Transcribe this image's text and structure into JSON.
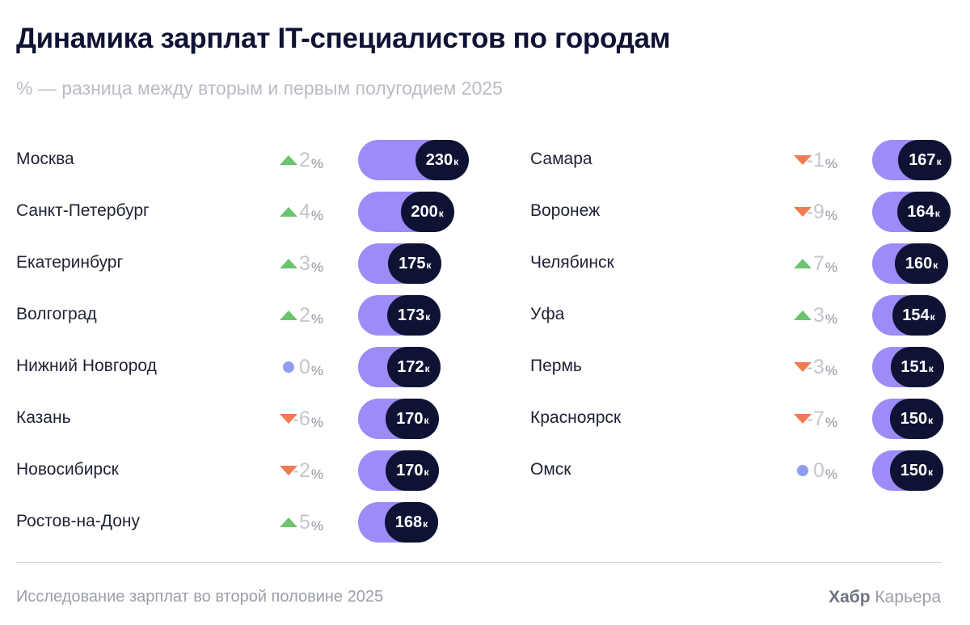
{
  "title": "Динамика зарплат IT-специалистов по городам",
  "subtitle": "% — разница между вторым и первым полугодием 2025",
  "footer": {
    "source": "Исследование зарплат во второй половине 2025",
    "brand_bold": "Хабр",
    "brand_rest": "Карьера"
  },
  "colors": {
    "up": "#6cc46e",
    "down": "#f07a52",
    "flat": "#8f9ef2",
    "bar": "#9d8bf8",
    "pill": "#0e1233"
  },
  "chart_data": {
    "type": "bar",
    "title": "Динамика зарплат IT-специалистов по городам",
    "subtitle": "% — разница между вторым и первым полугодием 2025",
    "value_unit": "к",
    "change_unit": "%",
    "series": [
      {
        "name": "left-column",
        "items": [
          {
            "city": "Москва",
            "value": 230,
            "change": 2,
            "trend": "up"
          },
          {
            "city": "Санкт-Петербург",
            "value": 200,
            "change": 4,
            "trend": "up"
          },
          {
            "city": "Екатеринбург",
            "value": 175,
            "change": 3,
            "trend": "up"
          },
          {
            "city": "Волгоград",
            "value": 173,
            "change": 2,
            "trend": "up"
          },
          {
            "city": "Нижний Новгород",
            "value": 172,
            "change": 0,
            "trend": "flat"
          },
          {
            "city": "Казань",
            "value": 170,
            "change": -6,
            "trend": "down"
          },
          {
            "city": "Новосибирск",
            "value": 170,
            "change": -2,
            "trend": "down"
          },
          {
            "city": "Ростов-на-Дону",
            "value": 168,
            "change": 5,
            "trend": "up"
          }
        ]
      },
      {
        "name": "right-column",
        "items": [
          {
            "city": "Самара",
            "value": 167,
            "change": -1,
            "trend": "down"
          },
          {
            "city": "Воронеж",
            "value": 164,
            "change": -9,
            "trend": "down"
          },
          {
            "city": "Челябинск",
            "value": 160,
            "change": 7,
            "trend": "up"
          },
          {
            "city": "Уфа",
            "value": 154,
            "change": 3,
            "trend": "up"
          },
          {
            "city": "Пермь",
            "value": 151,
            "change": -3,
            "trend": "down"
          },
          {
            "city": "Красноярск",
            "value": 150,
            "change": -7,
            "trend": "down"
          },
          {
            "city": "Омск",
            "value": 150,
            "change": 0,
            "trend": "flat"
          }
        ]
      }
    ]
  }
}
